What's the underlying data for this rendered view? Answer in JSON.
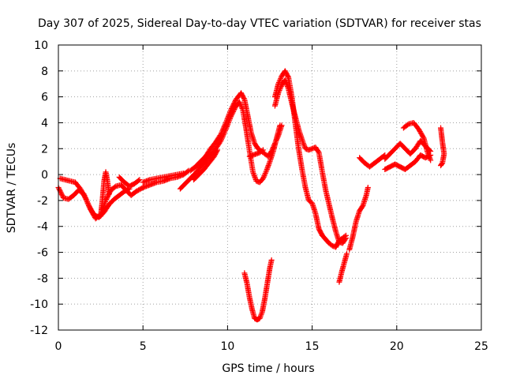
{
  "chart_data": {
    "type": "scatter",
    "title": "Day 307 of 2025, Sidereal Day-to-day VTEC variation (SDTVAR) for receiver stas",
    "xlabel": "GPS time / hours",
    "ylabel": "SDTVAR / TECUs",
    "xlim": [
      0,
      25
    ],
    "ylim": [
      -12,
      10
    ],
    "xticks": [
      0,
      5,
      10,
      15,
      20,
      25
    ],
    "yticks": [
      -12,
      -10,
      -8,
      -6,
      -4,
      -2,
      0,
      2,
      4,
      6,
      8,
      10
    ],
    "grid": true,
    "marker": "+",
    "series": [
      {
        "name": "stas",
        "color": "#ff0000",
        "tracks": [
          [
            [
              0.0,
              -1.0
            ],
            [
              0.3,
              -1.8
            ],
            [
              0.6,
              -1.9
            ],
            [
              0.9,
              -1.6
            ],
            [
              1.2,
              -1.2
            ],
            [
              1.5,
              -1.5
            ],
            [
              1.8,
              -2.4
            ],
            [
              2.1,
              -3.1
            ],
            [
              2.4,
              -3.3
            ],
            [
              2.7,
              -2.9
            ],
            [
              3.0,
              -2.3
            ],
            [
              3.3,
              -1.9
            ],
            [
              3.6,
              -1.6
            ],
            [
              3.9,
              -1.3
            ],
            [
              4.2,
              -1.1
            ]
          ],
          [
            [
              0.1,
              -0.3
            ],
            [
              0.4,
              -0.4
            ],
            [
              0.7,
              -0.5
            ],
            [
              1.0,
              -0.6
            ],
            [
              1.3,
              -1.1
            ],
            [
              1.6,
              -1.8
            ],
            [
              1.9,
              -2.7
            ],
            [
              2.2,
              -3.4
            ],
            [
              2.5,
              -3.1
            ],
            [
              2.8,
              -2.0
            ],
            [
              3.1,
              -1.2
            ],
            [
              3.4,
              -0.9
            ],
            [
              3.7,
              -0.8
            ],
            [
              4.0,
              -1.2
            ],
            [
              4.3,
              -1.6
            ],
            [
              4.6,
              -1.3
            ],
            [
              5.0,
              -1.0
            ]
          ],
          [
            [
              2.5,
              -3.2
            ],
            [
              2.6,
              -2.0
            ],
            [
              2.7,
              -0.5
            ],
            [
              2.8,
              0.2
            ],
            [
              2.9,
              -0.5
            ],
            [
              3.0,
              -1.5
            ]
          ],
          [
            [
              3.6,
              -0.2
            ],
            [
              3.9,
              -0.6
            ],
            [
              4.2,
              -0.9
            ],
            [
              4.5,
              -0.7
            ],
            [
              4.8,
              -0.4
            ]
          ],
          [
            [
              5.0,
              -1.0
            ],
            [
              5.4,
              -0.8
            ],
            [
              5.8,
              -0.6
            ],
            [
              6.2,
              -0.5
            ],
            [
              6.6,
              -0.3
            ],
            [
              7.0,
              -0.2
            ],
            [
              7.4,
              0.0
            ],
            [
              7.7,
              0.3
            ]
          ],
          [
            [
              5.0,
              -0.6
            ],
            [
              5.4,
              -0.4
            ],
            [
              5.8,
              -0.3
            ],
            [
              6.2,
              -0.2
            ],
            [
              6.6,
              -0.1
            ],
            [
              7.0,
              0.0
            ],
            [
              7.4,
              0.1
            ]
          ],
          [
            [
              7.2,
              -1.1
            ],
            [
              7.5,
              -0.7
            ],
            [
              7.8,
              -0.3
            ],
            [
              8.1,
              0.1
            ],
            [
              8.4,
              0.6
            ],
            [
              8.7,
              1.0
            ],
            [
              9.0,
              1.5
            ],
            [
              9.3,
              2.0
            ],
            [
              9.6,
              2.6
            ],
            [
              9.9,
              3.5
            ],
            [
              10.2,
              4.5
            ],
            [
              10.5,
              5.3
            ],
            [
              10.7,
              5.6
            ],
            [
              10.9,
              5.0
            ],
            [
              11.1,
              3.5
            ],
            [
              11.3,
              1.8
            ],
            [
              11.5,
              0.2
            ],
            [
              11.7,
              -0.5
            ],
            [
              11.9,
              -0.6
            ],
            [
              12.1,
              -0.3
            ],
            [
              12.3,
              0.3
            ],
            [
              12.5,
              1.0
            ],
            [
              12.7,
              1.8
            ],
            [
              12.9,
              2.8
            ],
            [
              13.1,
              3.8
            ]
          ],
          [
            [
              7.8,
              0.3
            ],
            [
              8.1,
              0.6
            ],
            [
              8.4,
              1.0
            ],
            [
              8.7,
              1.4
            ],
            [
              9.0,
              2.0
            ],
            [
              9.3,
              2.5
            ],
            [
              9.6,
              3.1
            ],
            [
              9.9,
              4.0
            ],
            [
              10.2,
              5.0
            ],
            [
              10.5,
              5.8
            ],
            [
              10.8,
              6.3
            ],
            [
              11.0,
              5.8
            ],
            [
              11.2,
              4.5
            ],
            [
              11.4,
              3.2
            ],
            [
              11.6,
              2.4
            ],
            [
              11.8,
              2.0
            ],
            [
              12.0,
              1.8
            ],
            [
              12.2,
              1.6
            ],
            [
              12.4,
              1.4
            ],
            [
              12.6,
              1.8
            ],
            [
              12.8,
              2.4
            ],
            [
              13.0,
              3.0
            ],
            [
              13.2,
              3.8
            ]
          ],
          [
            [
              8.0,
              -0.4
            ],
            [
              8.3,
              0.0
            ],
            [
              8.6,
              0.4
            ],
            [
              8.9,
              0.9
            ],
            [
              9.2,
              1.4
            ],
            [
              9.4,
              1.9
            ]
          ],
          [
            [
              11.3,
              1.4
            ],
            [
              11.5,
              1.5
            ],
            [
              11.7,
              1.6
            ],
            [
              11.9,
              1.7
            ],
            [
              12.1,
              1.9
            ]
          ],
          [
            [
              11.0,
              -7.6
            ],
            [
              11.15,
              -8.4
            ],
            [
              11.3,
              -9.5
            ],
            [
              11.45,
              -10.4
            ],
            [
              11.6,
              -11.1
            ],
            [
              11.75,
              -11.2
            ],
            [
              11.9,
              -11.1
            ],
            [
              12.05,
              -10.6
            ],
            [
              12.2,
              -9.6
            ],
            [
              12.35,
              -8.4
            ],
            [
              12.5,
              -7.2
            ],
            [
              12.6,
              -6.6
            ]
          ],
          [
            [
              12.8,
              6.0
            ],
            [
              13.0,
              7.0
            ],
            [
              13.2,
              7.6
            ],
            [
              13.4,
              8.0
            ],
            [
              13.6,
              7.5
            ],
            [
              13.8,
              6.0
            ],
            [
              14.0,
              4.0
            ],
            [
              14.2,
              2.0
            ],
            [
              14.4,
              0.4
            ],
            [
              14.6,
              -1.0
            ],
            [
              14.8,
              -2.0
            ],
            [
              15.0,
              -2.2
            ],
            [
              15.2,
              -3.0
            ],
            [
              15.4,
              -4.2
            ],
            [
              15.6,
              -4.7
            ]
          ],
          [
            [
              12.8,
              5.3
            ],
            [
              13.0,
              6.3
            ],
            [
              13.2,
              6.9
            ],
            [
              13.4,
              7.3
            ],
            [
              13.6,
              6.6
            ],
            [
              13.8,
              5.5
            ],
            [
              14.0,
              4.5
            ],
            [
              14.2,
              3.5
            ],
            [
              14.4,
              2.7
            ],
            [
              14.6,
              2.0
            ],
            [
              14.8,
              1.9
            ],
            [
              15.0,
              2.0
            ],
            [
              15.2,
              2.1
            ],
            [
              15.4,
              1.7
            ],
            [
              15.6,
              0.2
            ],
            [
              15.8,
              -1.2
            ],
            [
              16.0,
              -2.3
            ],
            [
              16.2,
              -3.4
            ],
            [
              16.4,
              -4.4
            ],
            [
              16.6,
              -5.2
            ],
            [
              16.8,
              -5.3
            ],
            [
              17.0,
              -4.9
            ]
          ],
          [
            [
              15.6,
              -4.7
            ],
            [
              15.8,
              -5.0
            ],
            [
              16.0,
              -5.3
            ],
            [
              16.2,
              -5.5
            ],
            [
              16.4,
              -5.6
            ],
            [
              16.6,
              -5.1
            ],
            [
              16.8,
              -4.9
            ],
            [
              17.0,
              -4.7
            ]
          ],
          [
            [
              16.6,
              -8.3
            ],
            [
              16.75,
              -7.5
            ],
            [
              16.9,
              -6.8
            ],
            [
              17.05,
              -6.1
            ]
          ],
          [
            [
              17.2,
              -5.8
            ],
            [
              17.4,
              -4.8
            ],
            [
              17.6,
              -3.6
            ],
            [
              17.8,
              -2.8
            ],
            [
              18.0,
              -2.4
            ],
            [
              18.2,
              -1.6
            ],
            [
              18.3,
              -1.0
            ]
          ],
          [
            [
              17.8,
              1.3
            ],
            [
              18.1,
              0.9
            ],
            [
              18.4,
              0.6
            ],
            [
              18.7,
              0.9
            ],
            [
              19.0,
              1.2
            ],
            [
              19.3,
              1.5
            ]
          ],
          [
            [
              19.3,
              0.4
            ],
            [
              19.6,
              0.6
            ],
            [
              19.9,
              0.8
            ],
            [
              20.2,
              0.6
            ],
            [
              20.5,
              0.4
            ],
            [
              20.8,
              0.7
            ],
            [
              21.1,
              1.0
            ],
            [
              21.4,
              1.5
            ],
            [
              21.7,
              1.3
            ],
            [
              22.0,
              1.5
            ]
          ],
          [
            [
              19.3,
              1.2
            ],
            [
              19.6,
              1.6
            ],
            [
              19.9,
              2.0
            ],
            [
              20.2,
              2.4
            ],
            [
              20.5,
              2.0
            ],
            [
              20.8,
              1.6
            ],
            [
              21.1,
              2.0
            ],
            [
              21.4,
              2.6
            ],
            [
              21.7,
              2.2
            ],
            [
              22.0,
              1.8
            ]
          ],
          [
            [
              20.4,
              3.6
            ],
            [
              20.7,
              3.9
            ],
            [
              21.0,
              4.0
            ],
            [
              21.3,
              3.5
            ],
            [
              21.6,
              2.8
            ],
            [
              21.8,
              1.8
            ],
            [
              22.0,
              1.1
            ]
          ],
          [
            [
              22.6,
              3.6
            ],
            [
              22.7,
              2.5
            ],
            [
              22.8,
              1.6
            ],
            [
              22.7,
              0.9
            ],
            [
              22.6,
              0.7
            ]
          ]
        ]
      }
    ]
  }
}
